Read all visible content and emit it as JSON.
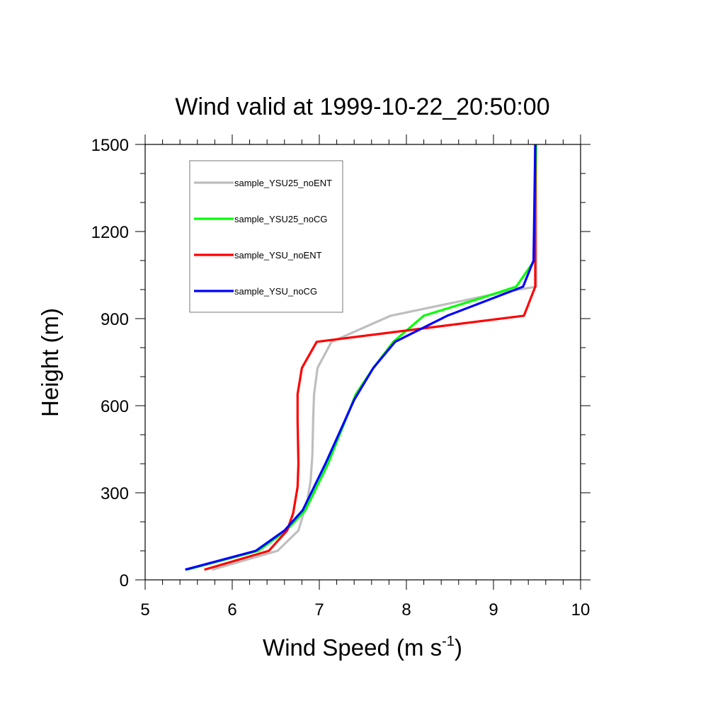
{
  "chart_data": {
    "type": "line",
    "title": "Wind valid at 1999-10-22_20:50:00",
    "xlabel": "Wind Speed (m s",
    "xlabel_superscript": "-1",
    "xlabel_suffix": ")",
    "ylabel": "Height (m)",
    "xlim": [
      5,
      10
    ],
    "ylim": [
      0,
      1500
    ],
    "x_ticks": [
      5,
      6,
      7,
      8,
      9,
      10
    ],
    "y_ticks": [
      0,
      300,
      600,
      900,
      1200,
      1500
    ],
    "grid": false,
    "legend_position": "top-left",
    "series": [
      {
        "name": "sample_YSU25_noENT",
        "color": "#bebebe",
        "points": [
          [
            5.77,
            35
          ],
          [
            6.52,
            100
          ],
          [
            6.76,
            170
          ],
          [
            6.86,
            270
          ],
          [
            6.9,
            340
          ],
          [
            6.92,
            430
          ],
          [
            6.93,
            560
          ],
          [
            6.94,
            640
          ],
          [
            6.98,
            730
          ],
          [
            7.14,
            820
          ],
          [
            7.82,
            910
          ],
          [
            9.1,
            990
          ],
          [
            9.49,
            1010
          ],
          [
            9.49,
            1100
          ],
          [
            9.49,
            1500
          ]
        ]
      },
      {
        "name": "sample_YSU25_noCG",
        "color": "#00ff00",
        "points": [
          [
            5.48,
            35
          ],
          [
            6.3,
            100
          ],
          [
            6.62,
            170
          ],
          [
            6.84,
            240
          ],
          [
            6.97,
            320
          ],
          [
            7.1,
            400
          ],
          [
            7.3,
            550
          ],
          [
            7.42,
            640
          ],
          [
            7.62,
            730
          ],
          [
            7.85,
            820
          ],
          [
            8.2,
            910
          ],
          [
            8.85,
            970
          ],
          [
            9.26,
            1010
          ],
          [
            9.47,
            1100
          ],
          [
            9.49,
            1500
          ]
        ]
      },
      {
        "name": "sample_YSU_noENT",
        "color": "#ff0000",
        "points": [
          [
            5.68,
            35
          ],
          [
            6.42,
            100
          ],
          [
            6.63,
            170
          ],
          [
            6.7,
            230
          ],
          [
            6.75,
            320
          ],
          [
            6.76,
            400
          ],
          [
            6.75,
            550
          ],
          [
            6.75,
            640
          ],
          [
            6.8,
            730
          ],
          [
            6.97,
            820
          ],
          [
            9.35,
            910
          ],
          [
            9.48,
            1010
          ],
          [
            9.48,
            1100
          ],
          [
            9.48,
            1500
          ]
        ]
      },
      {
        "name": "sample_YSU_noCG",
        "color": "#0000ff",
        "points": [
          [
            5.46,
            35
          ],
          [
            6.27,
            100
          ],
          [
            6.6,
            170
          ],
          [
            6.81,
            240
          ],
          [
            6.94,
            320
          ],
          [
            7.07,
            400
          ],
          [
            7.25,
            520
          ],
          [
            7.4,
            620
          ],
          [
            7.62,
            730
          ],
          [
            7.87,
            820
          ],
          [
            8.47,
            910
          ],
          [
            9.34,
            1010
          ],
          [
            9.46,
            1100
          ],
          [
            9.48,
            1500
          ]
        ]
      }
    ]
  }
}
